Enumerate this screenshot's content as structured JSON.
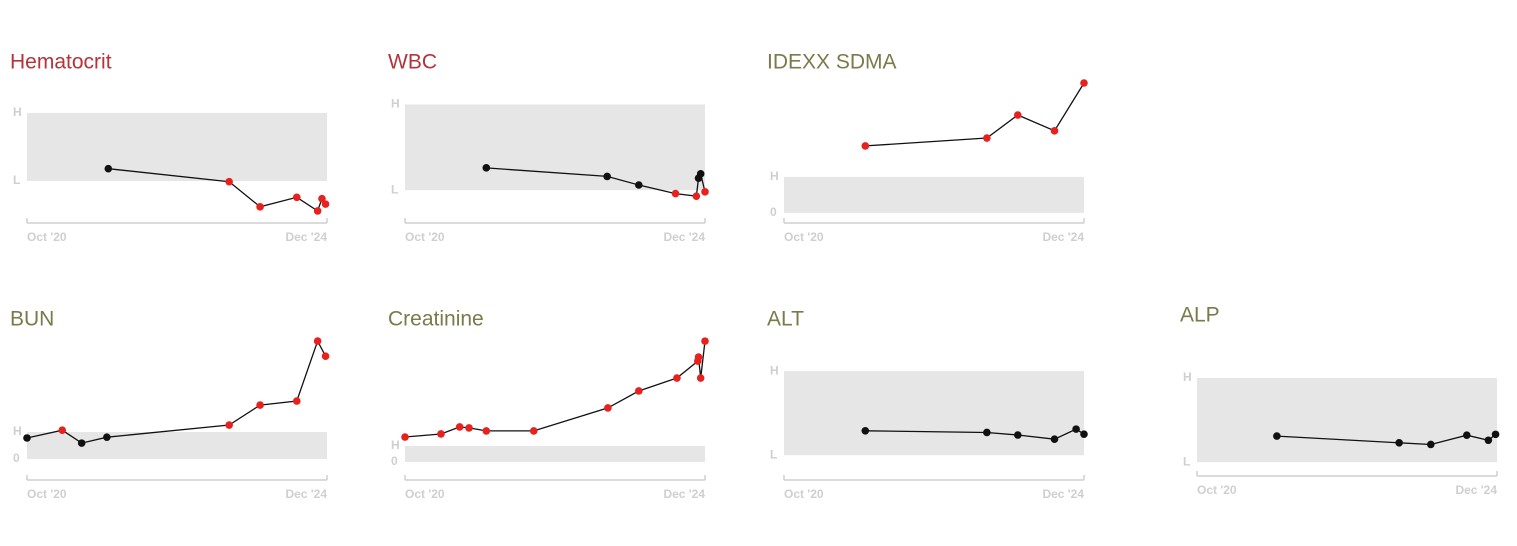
{
  "chart_data": [
    {
      "type": "line",
      "title": "Hematocrit",
      "title_color": "#b5333a",
      "x": [
        2021.88,
        2023.56,
        2023.99,
        2024.5,
        2024.79,
        2024.85,
        2024.9
      ],
      "series": [
        {
          "color": "#111111",
          "values": [
            0.18,
            -0.01,
            -0.38,
            -0.24,
            -0.44,
            -0.26,
            -0.34
          ],
          "point_colors": [
            "#111111",
            "#e8211f",
            "#e8211f",
            "#e8211f",
            "#e8211f",
            "#e8211f",
            "#e8211f"
          ]
        }
      ],
      "xlim": [
        2020.75,
        2024.92
      ],
      "xticks": [
        {
          "value": 2020.75,
          "label": "Oct '20"
        },
        {
          "value": 2024.92,
          "label": "Dec '24"
        }
      ],
      "ylim": [
        -0.5,
        1.44
      ],
      "yticks": [
        {
          "value": 1,
          "label": "H"
        },
        {
          "value": 0,
          "label": "L"
        }
      ]
    },
    {
      "type": "line",
      "title": "WBC",
      "title_color": "#b5333a",
      "x": [
        2021.88,
        2023.56,
        2024.0,
        2024.51,
        2024.8,
        2024.83,
        2024.86,
        2024.92
      ],
      "series": [
        {
          "color": "#111111",
          "values": [
            0.26,
            0.16,
            0.06,
            -0.04,
            -0.07,
            0.14,
            0.19,
            -0.02
          ],
          "point_colors": [
            "#111111",
            "#111111",
            "#111111",
            "#e8211f",
            "#e8211f",
            "#111111",
            "#111111",
            "#e8211f"
          ]
        }
      ],
      "xlim": [
        2020.75,
        2024.92
      ],
      "xticks": [
        {
          "value": 2020.75,
          "label": "Oct '20"
        },
        {
          "value": 2024.92,
          "label": "Dec '24"
        }
      ],
      "ylim": [
        -0.29,
        1.25
      ],
      "yticks": [
        {
          "value": 1,
          "label": "H"
        },
        {
          "value": 0,
          "label": "L"
        }
      ]
    },
    {
      "type": "line",
      "title": "IDEXX SDMA",
      "title_color": "#7a7a4a",
      "x": [
        2021.88,
        2023.57,
        2024.0,
        2024.51,
        2024.92
      ],
      "series": [
        {
          "color": "#111111",
          "values": [
            1.86,
            2.08,
            2.72,
            2.28,
            3.61
          ],
          "point_colors": [
            "#e8211f",
            "#e8211f",
            "#e8211f",
            "#e8211f",
            "#e8211f"
          ]
        }
      ],
      "xlim": [
        2020.75,
        2024.92
      ],
      "xticks": [
        {
          "value": 2020.75,
          "label": "Oct '20"
        },
        {
          "value": 2024.92,
          "label": "Dec '24"
        }
      ],
      "ylim": [
        -0.06,
        3.61
      ],
      "yticks": [
        {
          "value": 1,
          "label": "H"
        },
        0
      ]
    },
    {
      "type": "line",
      "title": "BUN",
      "title_color": "#7a7a4a",
      "x": [
        2020.75,
        2021.24,
        2021.51,
        2021.86,
        2023.56,
        2023.99,
        2024.5,
        2024.79,
        2024.9
      ],
      "series": [
        {
          "color": "#111111",
          "values": [
            0.78,
            1.07,
            0.59,
            0.81,
            1.26,
            2.0,
            2.15,
            4.37,
            3.81
          ],
          "point_colors": [
            "#111111",
            "#e8211f",
            "#111111",
            "#111111",
            "#e8211f",
            "#e8211f",
            "#e8211f",
            "#e8211f",
            "#e8211f"
          ]
        }
      ],
      "xlim": [
        2020.75,
        2024.92
      ],
      "xticks": [
        {
          "value": 2020.75,
          "label": "Oct '20"
        },
        {
          "value": 2024.92,
          "label": "Dec '24"
        }
      ],
      "ylim": [
        -0.48,
        4.41
      ],
      "yticks": [
        {
          "value": 1,
          "label": "H"
        },
        0
      ]
    },
    {
      "type": "line",
      "title": "Creatinine",
      "title_color": "#7a7a4a",
      "x": [
        2020.75,
        2021.25,
        2021.51,
        2021.64,
        2021.88,
        2022.54,
        2023.57,
        2024.0,
        2024.53,
        2024.82,
        2024.83,
        2024.86,
        2024.92
      ],
      "series": [
        {
          "color": "#111111",
          "values": [
            1.56,
            1.75,
            2.19,
            2.13,
            1.94,
            1.94,
            3.38,
            4.44,
            5.25,
            6.31,
            6.56,
            5.25,
            7.56
          ],
          "point_colors": [
            "#e8211f",
            "#e8211f",
            "#e8211f",
            "#e8211f",
            "#e8211f",
            "#e8211f",
            "#e8211f",
            "#e8211f",
            "#e8211f",
            "#e8211f",
            "#e8211f",
            "#e8211f",
            "#e8211f"
          ]
        }
      ],
      "xlim": [
        2020.75,
        2024.92
      ],
      "xticks": [
        {
          "value": 2020.75,
          "label": "Oct '20"
        },
        {
          "value": 2024.92,
          "label": "Dec '24"
        }
      ],
      "ylim": [
        -0.63,
        7.63
      ],
      "yticks": [
        {
          "value": 1,
          "label": "H"
        },
        0
      ]
    },
    {
      "type": "line",
      "title": "ALT",
      "title_color": "#7a7a4a",
      "x": [
        2021.88,
        2023.57,
        2024.0,
        2024.51,
        2024.81,
        2024.92
      ],
      "series": [
        {
          "color": "#111111",
          "values": [
            0.29,
            0.27,
            0.24,
            0.19,
            0.31,
            0.25
          ],
          "point_colors": [
            "#111111",
            "#111111",
            "#111111",
            "#111111",
            "#111111",
            "#111111"
          ]
        }
      ],
      "xlim": [
        2020.75,
        2024.92
      ],
      "xticks": [
        {
          "value": 2020.75,
          "label": "Oct '20"
        },
        {
          "value": 2024.92,
          "label": "Dec '24"
        }
      ],
      "ylim": [
        -0.2,
        1.37
      ],
      "yticks": [
        {
          "value": 1,
          "label": "H"
        },
        {
          "value": 0,
          "label": "L"
        }
      ]
    },
    {
      "type": "line",
      "title": "ALP",
      "title_color": "#7a7a4a",
      "x": [
        2021.86,
        2023.56,
        2024.0,
        2024.5,
        2024.8,
        2024.9
      ],
      "series": [
        {
          "color": "#111111",
          "values": [
            0.31,
            0.23,
            0.21,
            0.32,
            0.26,
            0.33
          ],
          "point_colors": [
            "#111111",
            "#111111",
            "#111111",
            "#111111",
            "#111111",
            "#111111"
          ]
        }
      ],
      "xlim": [
        2020.75,
        2024.92
      ],
      "xticks": [
        {
          "value": 2020.75,
          "label": "Oct '20"
        },
        {
          "value": 2024.92,
          "label": "Dec '24"
        }
      ],
      "ylim": [
        -0.07,
        1.5
      ],
      "yticks": [
        {
          "value": 1,
          "label": "H"
        },
        {
          "value": 0,
          "label": "L"
        }
      ]
    }
  ]
}
